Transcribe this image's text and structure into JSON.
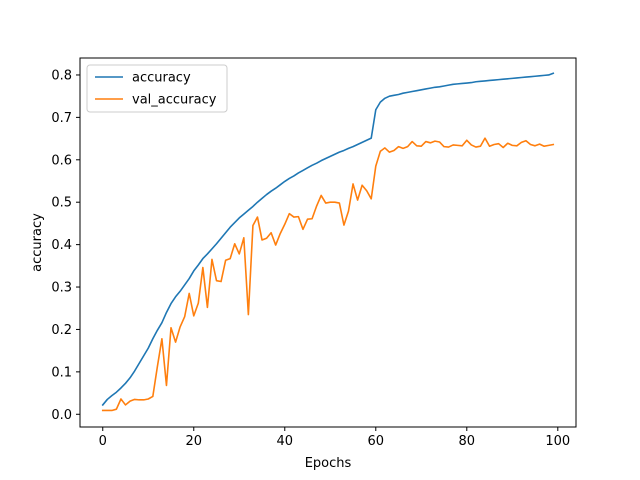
{
  "chart_data": {
    "type": "line",
    "title": "",
    "xlabel": "Epochs",
    "ylabel": "accuracy",
    "xlim": [
      -5,
      104
    ],
    "ylim": [
      -0.03,
      0.84
    ],
    "xticks": [
      0,
      20,
      40,
      60,
      80,
      100
    ],
    "yticks": [
      0.0,
      0.1,
      0.2,
      0.3,
      0.4,
      0.5,
      0.6,
      0.7,
      0.8
    ],
    "ytick_labels": [
      "0.0",
      "0.1",
      "0.2",
      "0.3",
      "0.4",
      "0.5",
      "0.6",
      "0.7",
      "0.8"
    ],
    "grid": false,
    "legend": "top-left",
    "x": [
      0,
      1,
      2,
      3,
      4,
      5,
      6,
      7,
      8,
      9,
      10,
      11,
      12,
      13,
      14,
      15,
      16,
      17,
      18,
      19,
      20,
      21,
      22,
      23,
      24,
      25,
      26,
      27,
      28,
      29,
      30,
      31,
      32,
      33,
      34,
      35,
      36,
      37,
      38,
      39,
      40,
      41,
      42,
      43,
      44,
      45,
      46,
      47,
      48,
      49,
      50,
      51,
      52,
      53,
      54,
      55,
      56,
      57,
      58,
      59,
      60,
      61,
      62,
      63,
      64,
      65,
      66,
      67,
      68,
      69,
      70,
      71,
      72,
      73,
      74,
      75,
      76,
      77,
      78,
      79,
      80,
      81,
      82,
      83,
      84,
      85,
      86,
      87,
      88,
      89,
      90,
      91,
      92,
      93,
      94,
      95,
      96,
      97,
      98,
      99
    ],
    "series": [
      {
        "name": "accuracy",
        "color": "#1f77b4",
        "values": [
          0.022,
          0.035,
          0.044,
          0.052,
          0.062,
          0.073,
          0.086,
          0.102,
          0.12,
          0.138,
          0.156,
          0.178,
          0.198,
          0.216,
          0.24,
          0.261,
          0.277,
          0.29,
          0.305,
          0.32,
          0.338,
          0.352,
          0.367,
          0.378,
          0.39,
          0.402,
          0.415,
          0.428,
          0.441,
          0.452,
          0.463,
          0.472,
          0.481,
          0.49,
          0.5,
          0.509,
          0.518,
          0.526,
          0.533,
          0.541,
          0.549,
          0.556,
          0.562,
          0.569,
          0.575,
          0.581,
          0.587,
          0.592,
          0.598,
          0.603,
          0.608,
          0.613,
          0.618,
          0.622,
          0.627,
          0.631,
          0.636,
          0.641,
          0.646,
          0.651,
          0.718,
          0.736,
          0.745,
          0.75,
          0.752,
          0.754,
          0.757,
          0.759,
          0.761,
          0.763,
          0.765,
          0.767,
          0.769,
          0.771,
          0.772,
          0.774,
          0.776,
          0.778,
          0.779,
          0.78,
          0.781,
          0.782,
          0.784,
          0.785,
          0.786,
          0.787,
          0.788,
          0.789,
          0.79,
          0.791,
          0.792,
          0.793,
          0.794,
          0.795,
          0.796,
          0.797,
          0.798,
          0.799,
          0.8,
          0.804
        ]
      },
      {
        "name": "val_accuracy",
        "color": "#ff7f0e",
        "values": [
          0.009,
          0.009,
          0.009,
          0.012,
          0.036,
          0.022,
          0.031,
          0.035,
          0.034,
          0.034,
          0.036,
          0.042,
          0.112,
          0.178,
          0.068,
          0.204,
          0.17,
          0.206,
          0.23,
          0.285,
          0.232,
          0.262,
          0.346,
          0.252,
          0.365,
          0.315,
          0.313,
          0.363,
          0.367,
          0.402,
          0.378,
          0.416,
          0.235,
          0.445,
          0.465,
          0.411,
          0.415,
          0.428,
          0.399,
          0.426,
          0.448,
          0.473,
          0.465,
          0.466,
          0.436,
          0.46,
          0.461,
          0.491,
          0.516,
          0.498,
          0.5,
          0.5,
          0.498,
          0.446,
          0.479,
          0.543,
          0.505,
          0.54,
          0.527,
          0.508,
          0.585,
          0.62,
          0.628,
          0.618,
          0.622,
          0.631,
          0.627,
          0.631,
          0.643,
          0.633,
          0.632,
          0.643,
          0.64,
          0.644,
          0.642,
          0.631,
          0.63,
          0.635,
          0.634,
          0.633,
          0.646,
          0.635,
          0.63,
          0.632,
          0.651,
          0.632,
          0.636,
          0.638,
          0.629,
          0.639,
          0.634,
          0.633,
          0.641,
          0.645,
          0.636,
          0.633,
          0.637,
          0.632,
          0.634,
          0.636
        ]
      }
    ]
  }
}
